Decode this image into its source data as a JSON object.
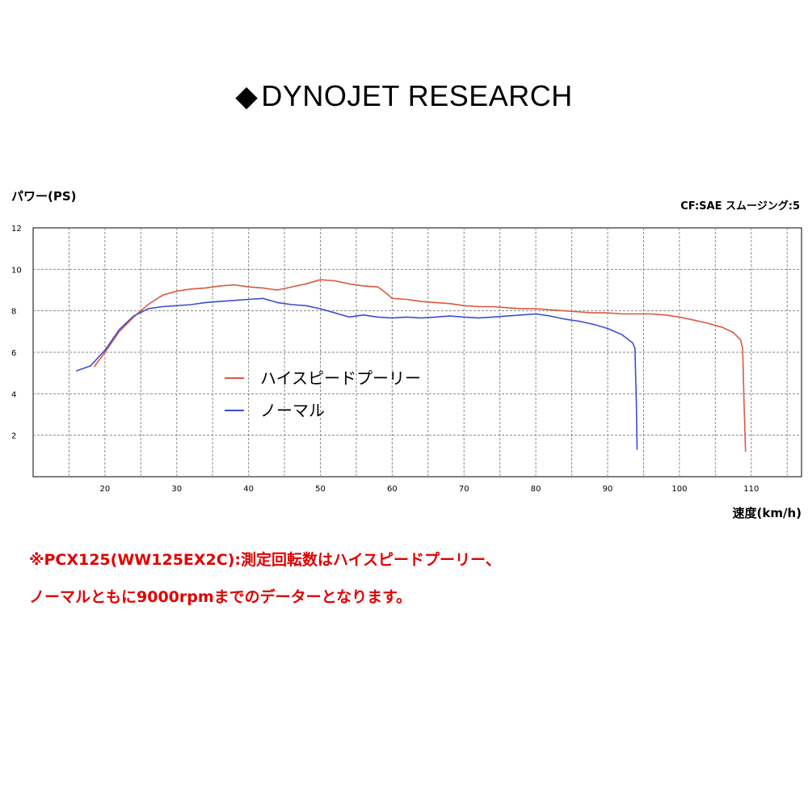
{
  "header": {
    "diamond": "◆",
    "title": "DYNOJET RESEARCH"
  },
  "chart_data": {
    "type": "line",
    "ylabel": "パワー(PS)",
    "xlabel": "速度(km/h)",
    "corner_note": "CF:SAE スムージング:5",
    "xlim": [
      10,
      117
    ],
    "ylim": [
      0,
      12
    ],
    "x_ticks": [
      20,
      30,
      40,
      50,
      60,
      70,
      80,
      90,
      100,
      110
    ],
    "y_ticks": [
      2,
      4,
      6,
      8,
      10,
      12
    ],
    "grid": true,
    "legend_placement": "center-left",
    "series": [
      {
        "name": "ハイスピードプーリー",
        "color": "#d9593f",
        "points": [
          [
            18.5,
            5.3
          ],
          [
            20,
            6.0
          ],
          [
            22,
            7.0
          ],
          [
            24,
            7.7
          ],
          [
            26,
            8.3
          ],
          [
            28,
            8.75
          ],
          [
            30,
            8.95
          ],
          [
            32,
            9.05
          ],
          [
            34,
            9.1
          ],
          [
            36,
            9.2
          ],
          [
            38,
            9.25
          ],
          [
            40,
            9.15
          ],
          [
            42,
            9.1
          ],
          [
            44,
            9.0
          ],
          [
            46,
            9.15
          ],
          [
            48,
            9.3
          ],
          [
            50,
            9.5
          ],
          [
            52,
            9.45
          ],
          [
            54,
            9.3
          ],
          [
            56,
            9.2
          ],
          [
            58,
            9.15
          ],
          [
            59,
            8.9
          ],
          [
            60,
            8.6
          ],
          [
            62,
            8.55
          ],
          [
            64,
            8.45
          ],
          [
            66,
            8.4
          ],
          [
            68,
            8.35
          ],
          [
            70,
            8.25
          ],
          [
            72,
            8.2
          ],
          [
            74,
            8.2
          ],
          [
            76,
            8.15
          ],
          [
            78,
            8.1
          ],
          [
            80,
            8.1
          ],
          [
            82,
            8.05
          ],
          [
            84,
            8.0
          ],
          [
            86,
            7.95
          ],
          [
            88,
            7.9
          ],
          [
            90,
            7.9
          ],
          [
            92,
            7.85
          ],
          [
            94,
            7.85
          ],
          [
            96,
            7.85
          ],
          [
            98,
            7.8
          ],
          [
            100,
            7.7
          ],
          [
            102,
            7.55
          ],
          [
            104,
            7.4
          ],
          [
            106,
            7.2
          ],
          [
            107.5,
            6.95
          ],
          [
            108.5,
            6.6
          ],
          [
            108.8,
            6.2
          ],
          [
            109.0,
            3.5
          ],
          [
            109.2,
            1.2
          ]
        ]
      },
      {
        "name": "ノーマル",
        "color": "#3a4fd0",
        "points": [
          [
            16,
            5.1
          ],
          [
            18,
            5.35
          ],
          [
            20,
            6.1
          ],
          [
            22,
            7.1
          ],
          [
            24,
            7.75
          ],
          [
            26,
            8.1
          ],
          [
            28,
            8.2
          ],
          [
            30,
            8.25
          ],
          [
            32,
            8.3
          ],
          [
            34,
            8.4
          ],
          [
            36,
            8.45
          ],
          [
            38,
            8.5
          ],
          [
            40,
            8.55
          ],
          [
            42,
            8.6
          ],
          [
            44,
            8.4
          ],
          [
            46,
            8.3
          ],
          [
            48,
            8.25
          ],
          [
            50,
            8.1
          ],
          [
            52,
            7.9
          ],
          [
            54,
            7.7
          ],
          [
            56,
            7.8
          ],
          [
            58,
            7.7
          ],
          [
            60,
            7.65
          ],
          [
            62,
            7.7
          ],
          [
            64,
            7.65
          ],
          [
            66,
            7.7
          ],
          [
            68,
            7.75
          ],
          [
            70,
            7.7
          ],
          [
            72,
            7.65
          ],
          [
            74,
            7.7
          ],
          [
            76,
            7.75
          ],
          [
            78,
            7.8
          ],
          [
            80,
            7.85
          ],
          [
            82,
            7.75
          ],
          [
            84,
            7.6
          ],
          [
            86,
            7.5
          ],
          [
            88,
            7.35
          ],
          [
            90,
            7.15
          ],
          [
            92,
            6.85
          ],
          [
            93.5,
            6.45
          ],
          [
            93.8,
            6.2
          ],
          [
            94.0,
            3.5
          ],
          [
            94.1,
            1.3
          ]
        ]
      }
    ]
  },
  "notes": [
    "※PCX125(WW125EX2C):測定回転数はハイスピードプーリー、",
    "ノーマルともに9000rpmまでのデーターとなります。"
  ]
}
